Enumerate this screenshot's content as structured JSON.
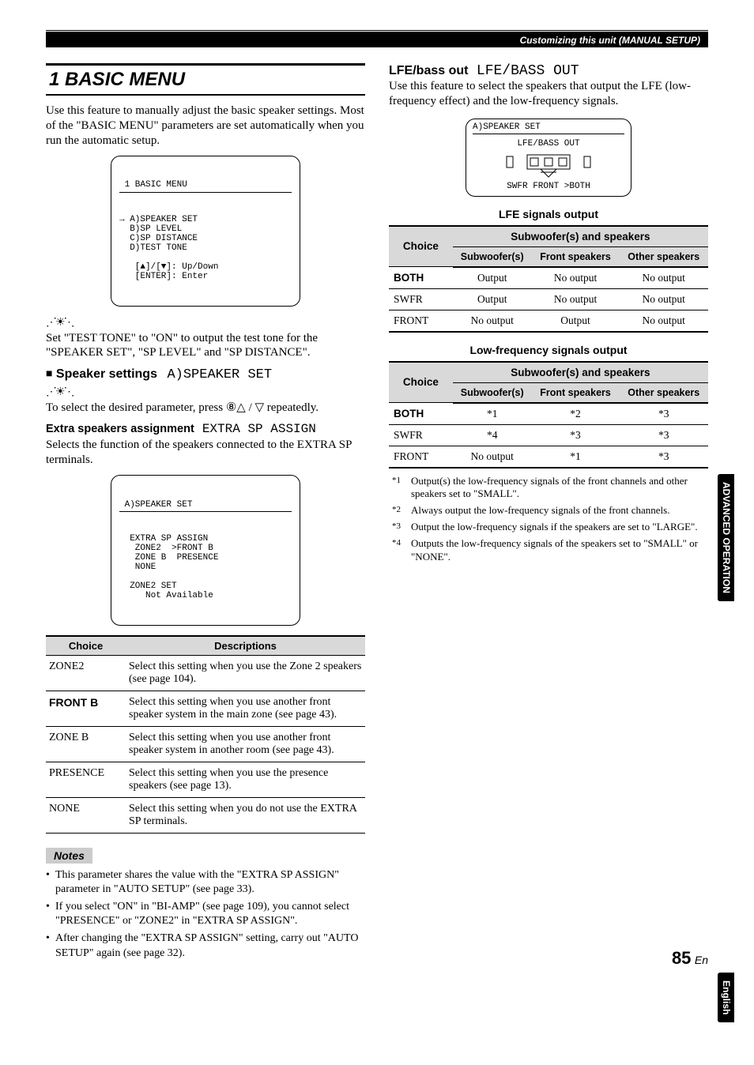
{
  "header": "Customizing this unit (MANUAL SETUP)",
  "left": {
    "section_title": "1 BASIC MENU",
    "intro": "Use this feature to manually adjust the basic speaker settings. Most of the \"BASIC MENU\" parameters are set automatically when you run the automatic setup.",
    "lcd1": {
      "title": " 1 BASIC MENU",
      "lines": "→ A)SPEAKER SET\n  B)SP LEVEL\n  C)SP DISTANCE\n  D)TEST TONE\n\n   [▲]/[▼]: Up/Down\n   [ENTER]: Enter"
    },
    "tip1": "Set \"TEST TONE\" to \"ON\" to output the test tone for the \"SPEAKER SET\", \"SP LEVEL\" and \"SP DISTANCE\".",
    "speaker_settings_label": "Speaker settings",
    "speaker_settings_lcd": "A)SPEAKER SET",
    "tip2": "To select the desired parameter, press ⑧△ / ▽ repeatedly.",
    "extra_label": "Extra speakers assignment",
    "extra_lcd": "EXTRA SP ASSIGN",
    "extra_desc": "Selects the function of the speakers connected to the EXTRA SP terminals.",
    "lcd2": {
      "title": " A)SPEAKER SET",
      "lines": "  EXTRA SP ASSIGN\n   ZONE2  >FRONT B\n   ZONE B  PRESENCE\n   NONE\n\n  ZONE2 SET\n     Not Available"
    },
    "table": {
      "h1": "Choice",
      "h2": "Descriptions",
      "rows": [
        {
          "c": "ZONE2",
          "d": "Select this setting when you use the Zone 2 speakers (see page 104).",
          "bold": false
        },
        {
          "c": "FRONT B",
          "d": "Select this setting when you use another front speaker system in the main zone (see page 43).",
          "bold": true
        },
        {
          "c": "ZONE B",
          "d": "Select this setting when you use another front speaker system in another room (see page 43).",
          "bold": false
        },
        {
          "c": "PRESENCE",
          "d": "Select this setting when you use the presence speakers (see page 13).",
          "bold": false
        },
        {
          "c": "NONE",
          "d": "Select this setting when you do not use the EXTRA SP terminals.",
          "bold": false
        }
      ]
    },
    "notes_label": "Notes",
    "notes": [
      "This parameter shares the value with the \"EXTRA SP ASSIGN\" parameter in \"AUTO SETUP\" (see page 33).",
      "If you select \"ON\" in \"BI-AMP\" (see page 109), you cannot select \"PRESENCE\" or \"ZONE2\" in \"EXTRA SP ASSIGN\".",
      "After changing the \"EXTRA SP ASSIGN\" setting, carry out \"AUTO SETUP\" again (see page 32)."
    ]
  },
  "right": {
    "lfe_label": "LFE/bass out",
    "lfe_lcd": "LFE/BASS OUT",
    "lfe_desc": "Use this feature to select the speakers that output the LFE (low-frequency effect) and the low-frequency signals.",
    "lcd": {
      "title": " A)SPEAKER SET",
      "sub": "LFE/BASS OUT",
      "opts": "SWFR  FRONT >BOTH"
    },
    "t1_title": "LFE signals output",
    "t2_title": "Low-frequency signals output",
    "th_choice": "Choice",
    "th_span": "Subwoofer(s) and speakers",
    "th_sub": "Subwoofer(s)",
    "th_front": "Front speakers",
    "th_other": "Other speakers",
    "t1_rows": [
      {
        "c": "BOTH",
        "v": [
          "Output",
          "No output",
          "No output"
        ],
        "bold": true
      },
      {
        "c": "SWFR",
        "v": [
          "Output",
          "No output",
          "No output"
        ],
        "bold": false
      },
      {
        "c": "FRONT",
        "v": [
          "No output",
          "Output",
          "No output"
        ],
        "bold": false
      }
    ],
    "t2_rows": [
      {
        "c": "BOTH",
        "v": [
          "*1",
          "*2",
          "*3"
        ],
        "bold": true
      },
      {
        "c": "SWFR",
        "v": [
          "*4",
          "*3",
          "*3"
        ],
        "bold": false
      },
      {
        "c": "FRONT",
        "v": [
          "No output",
          "*1",
          "*3"
        ],
        "bold": false
      }
    ],
    "footnotes": [
      {
        "m": "*1",
        "t": "Output(s) the low-frequency signals of the front channels and other speakers set to \"SMALL\"."
      },
      {
        "m": "*2",
        "t": "Always output the low-frequency signals of the front channels."
      },
      {
        "m": "*3",
        "t": "Output the low-frequency signals if the speakers are set to \"LARGE\"."
      },
      {
        "m": "*4",
        "t": "Outputs the low-frequency signals of the speakers set to \"SMALL\" or \"NONE\"."
      }
    ]
  },
  "tabs": {
    "t1": "ADVANCED\nOPERATION",
    "t2": "English"
  },
  "page": {
    "num": "85",
    "suf": "En"
  }
}
